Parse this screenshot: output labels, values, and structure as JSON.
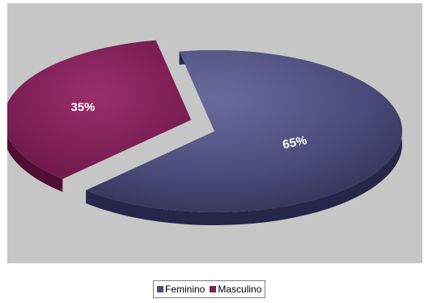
{
  "chart_data": {
    "type": "pie",
    "title": "",
    "categories": [
      "Feminino",
      "Masculino"
    ],
    "values": [
      65,
      35
    ],
    "data_labels": [
      "65%",
      "35%"
    ],
    "colors": [
      "#4b4b7b",
      "#7c1f55"
    ],
    "legend_position": "bottom",
    "exploded": "Masculino",
    "style": "3d"
  },
  "legend": {
    "items": [
      {
        "label": "Feminino",
        "color": "#4b4b7b"
      },
      {
        "label": "Masculino",
        "color": "#7c1f55"
      }
    ]
  }
}
